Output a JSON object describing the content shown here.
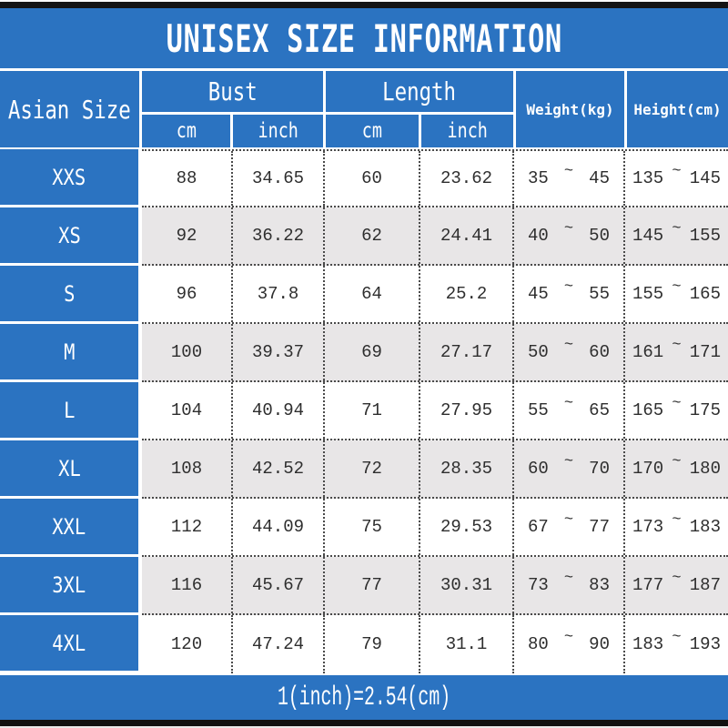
{
  "title": "UNISEX SIZE INFORMATION",
  "range_separator": "~",
  "footer_note": "1(inch)=2.54(cm)",
  "colors": {
    "header_blue": "#2B73C1",
    "row_alt_gray": "#E8E6E7",
    "value_text": "#2E2E2E",
    "top_bottom_bar_black": "#141414",
    "cell_line_white": "#FFFFFF"
  },
  "chart_data": {
    "type": "table",
    "title": "UNISEX SIZE INFORMATION",
    "column_groups": [
      {
        "label": "Asian Size"
      },
      {
        "label": "Bust",
        "subcolumns": [
          "cm",
          "inch"
        ]
      },
      {
        "label": "Length",
        "subcolumns": [
          "cm",
          "inch"
        ]
      },
      {
        "label": "Weight(kg)"
      },
      {
        "label": "Height(cm)"
      }
    ],
    "rows": [
      {
        "size": "XXS",
        "bust_cm": "88",
        "bust_inch": "34.65",
        "length_cm": "60",
        "length_inch": "23.62",
        "weight_min": "35",
        "weight_max": "45",
        "height_min": "135",
        "height_max": "145"
      },
      {
        "size": "XS",
        "bust_cm": "92",
        "bust_inch": "36.22",
        "length_cm": "62",
        "length_inch": "24.41",
        "weight_min": "40",
        "weight_max": "50",
        "height_min": "145",
        "height_max": "155"
      },
      {
        "size": "S",
        "bust_cm": "96",
        "bust_inch": "37.8",
        "length_cm": "64",
        "length_inch": "25.2",
        "weight_min": "45",
        "weight_max": "55",
        "height_min": "155",
        "height_max": "165"
      },
      {
        "size": "M",
        "bust_cm": "100",
        "bust_inch": "39.37",
        "length_cm": "69",
        "length_inch": "27.17",
        "weight_min": "50",
        "weight_max": "60",
        "height_min": "161",
        "height_max": "171"
      },
      {
        "size": "L",
        "bust_cm": "104",
        "bust_inch": "40.94",
        "length_cm": "71",
        "length_inch": "27.95",
        "weight_min": "55",
        "weight_max": "65",
        "height_min": "165",
        "height_max": "175"
      },
      {
        "size": "XL",
        "bust_cm": "108",
        "bust_inch": "42.52",
        "length_cm": "72",
        "length_inch": "28.35",
        "weight_min": "60",
        "weight_max": "70",
        "height_min": "170",
        "height_max": "180"
      },
      {
        "size": "XXL",
        "bust_cm": "112",
        "bust_inch": "44.09",
        "length_cm": "75",
        "length_inch": "29.53",
        "weight_min": "67",
        "weight_max": "77",
        "height_min": "173",
        "height_max": "183"
      },
      {
        "size": "3XL",
        "bust_cm": "116",
        "bust_inch": "45.67",
        "length_cm": "77",
        "length_inch": "30.31",
        "weight_min": "73",
        "weight_max": "83",
        "height_min": "177",
        "height_max": "187"
      },
      {
        "size": "4XL",
        "bust_cm": "120",
        "bust_inch": "47.24",
        "length_cm": "79",
        "length_inch": "31.1",
        "weight_min": "80",
        "weight_max": "90",
        "height_min": "183",
        "height_max": "193"
      }
    ],
    "footnote": "1(inch)=2.54(cm)"
  }
}
